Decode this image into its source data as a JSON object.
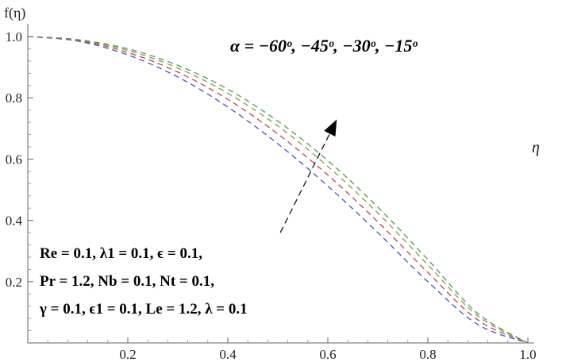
{
  "chart_data": {
    "type": "line",
    "xlabel": "η",
    "ylabel": "f(η)",
    "xlim": [
      0,
      1.0
    ],
    "ylim": [
      0,
      1.0
    ],
    "x_ticks": [
      "0.2",
      "0.4",
      "0.6",
      "0.8",
      "1.0"
    ],
    "y_ticks": [
      "0.2",
      "0.4",
      "0.6",
      "0.8",
      "1.0"
    ],
    "grid": false,
    "line_style": "dashed",
    "series": [
      {
        "color": "#4a4fc8",
        "x": [
          0,
          0.1,
          0.2,
          0.3,
          0.4,
          0.5,
          0.6,
          0.7,
          0.8,
          0.9,
          1.0
        ],
        "y": [
          1.0,
          0.985,
          0.94,
          0.868,
          0.77,
          0.65,
          0.512,
          0.36,
          0.2,
          0.06,
          0.0
        ]
      },
      {
        "color": "#c0415a",
        "x": [
          0,
          0.1,
          0.2,
          0.3,
          0.4,
          0.5,
          0.6,
          0.7,
          0.8,
          0.9,
          1.0
        ],
        "y": [
          1.0,
          0.987,
          0.948,
          0.884,
          0.795,
          0.682,
          0.548,
          0.395,
          0.23,
          0.075,
          0.0
        ]
      },
      {
        "color": "#8a9a3c",
        "x": [
          0,
          0.1,
          0.2,
          0.3,
          0.4,
          0.5,
          0.6,
          0.7,
          0.8,
          0.9,
          1.0
        ],
        "y": [
          1.0,
          0.989,
          0.955,
          0.897,
          0.815,
          0.708,
          0.576,
          0.424,
          0.255,
          0.088,
          0.0
        ]
      },
      {
        "color": "#4f9a5a",
        "x": [
          0,
          0.1,
          0.2,
          0.3,
          0.4,
          0.5,
          0.6,
          0.7,
          0.8,
          0.9,
          1.0
        ],
        "y": [
          1.0,
          0.99,
          0.96,
          0.906,
          0.828,
          0.724,
          0.595,
          0.443,
          0.272,
          0.096,
          0.0
        ]
      }
    ],
    "annotations": {
      "alpha_label": "α = −60ᵒ, −45ᵒ, −30ᵒ, −15ᵒ",
      "params_line1": "Re = 0.1, λ1 = 0.1, ϵ = 0.1,",
      "params_line2": "Pr = 1.2, Nb = 0.1, Nt = 0.1,",
      "params_line3": "γ = 0.1, ϵ1 = 0.1, Le = 1.2, λ = 0.1"
    },
    "arrow": {
      "from": [
        0.505,
        0.36
      ],
      "to": [
        0.615,
        0.72
      ],
      "direction": "increasing α"
    }
  }
}
